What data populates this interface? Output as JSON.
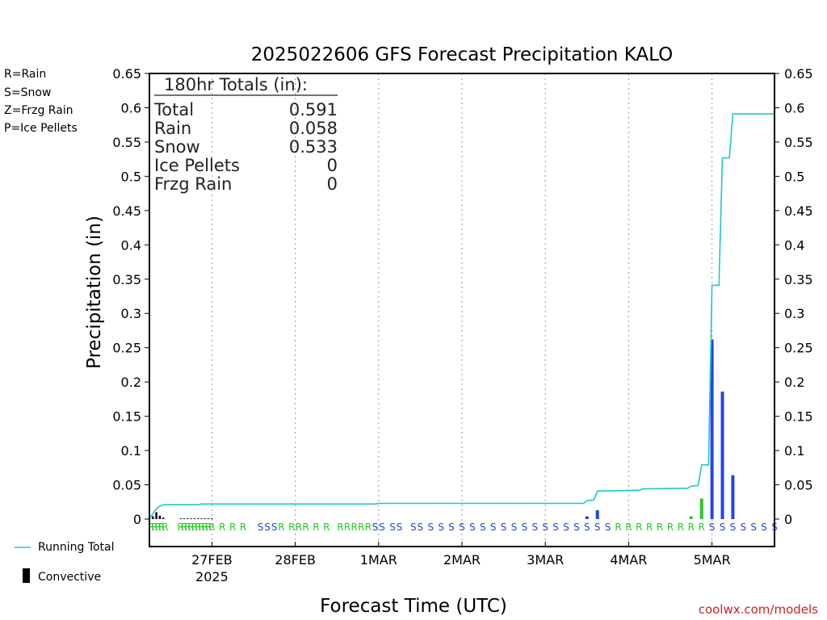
{
  "chart_data": {
    "type": "bar",
    "title": "2025022606 GFS Forecast Precipitation KALO",
    "xlabel": "Forecast Time (UTC)",
    "ylabel": "Precipitation (in)",
    "ylim": [
      0,
      0.65
    ],
    "xlim_hours": [
      0,
      180
    ],
    "y_ticks": [
      "0.65",
      "0.6",
      "0.55",
      "0.5",
      "0.45",
      "0.4",
      "0.35",
      "0.3",
      "0.25",
      "0.2",
      "0.15",
      "0.1",
      "0.05",
      "0"
    ],
    "x_tick_labels": [
      {
        "hour": 18,
        "label": "27FEB",
        "sublabel": "2025"
      },
      {
        "hour": 42,
        "label": "28FEB",
        "sublabel": ""
      },
      {
        "hour": 66,
        "label": "1MAR",
        "sublabel": ""
      },
      {
        "hour": 90,
        "label": "2MAR",
        "sublabel": ""
      },
      {
        "hour": 114,
        "label": "3MAR",
        "sublabel": ""
      },
      {
        "hour": 138,
        "label": "4MAR",
        "sublabel": ""
      },
      {
        "hour": 162,
        "label": "5MAR",
        "sublabel": ""
      }
    ],
    "grid": "vertical-dotted",
    "type_legend": [
      {
        "label": "R=Rain",
        "color": "#22cc22"
      },
      {
        "label": "S=Snow",
        "color": "#3355ee"
      },
      {
        "label": "Z=Frzg Rain",
        "color": "#ff8833"
      },
      {
        "label": "P=Ice Pellets",
        "color": "#ff2299"
      }
    ],
    "series_legend": {
      "running_total": "Running Total",
      "convective": "Convective"
    },
    "totals": {
      "header": "180hr Totals (in):",
      "rows": [
        {
          "label": "Total",
          "value": "0.591"
        },
        {
          "label": "Rain",
          "value": "0.058"
        },
        {
          "label": "Snow",
          "value": "0.533"
        },
        {
          "label": "Ice Pellets",
          "value": "0"
        },
        {
          "label": "Frzg Rain",
          "value": "0"
        }
      ]
    },
    "bars": [
      {
        "hour": 1,
        "value": 0.004,
        "kind": "convective"
      },
      {
        "hour": 2,
        "value": 0.01,
        "kind": "convective"
      },
      {
        "hour": 3,
        "value": 0.005,
        "kind": "convective"
      },
      {
        "hour": 4,
        "value": 0.002,
        "kind": "convective"
      },
      {
        "hour": 9,
        "value": 0.001,
        "kind": "convective"
      },
      {
        "hour": 10,
        "value": 0.001,
        "kind": "convective"
      },
      {
        "hour": 11,
        "value": 0.001,
        "kind": "convective"
      },
      {
        "hour": 12,
        "value": 0.001,
        "kind": "convective"
      },
      {
        "hour": 13,
        "value": 0.001,
        "kind": "convective"
      },
      {
        "hour": 14,
        "value": 0.001,
        "kind": "convective"
      },
      {
        "hour": 15,
        "value": 0.001,
        "kind": "convective"
      },
      {
        "hour": 16,
        "value": 0.001,
        "kind": "convective"
      },
      {
        "hour": 17,
        "value": 0.001,
        "kind": "convective"
      },
      {
        "hour": 18,
        "value": 0.001,
        "kind": "convective"
      },
      {
        "hour": 126,
        "value": 0.004,
        "kind": "snow"
      },
      {
        "hour": 129,
        "value": 0.013,
        "kind": "snow"
      },
      {
        "hour": 156,
        "value": 0.004,
        "kind": "rain"
      },
      {
        "hour": 159,
        "value": 0.03,
        "kind": "rain"
      },
      {
        "hour": 162,
        "value": 0.262,
        "kind": "snow"
      },
      {
        "hour": 165,
        "value": 0.186,
        "kind": "snow"
      },
      {
        "hour": 168,
        "value": 0.064,
        "kind": "snow"
      }
    ],
    "running_total": [
      {
        "hour": 0,
        "value": 0.0
      },
      {
        "hour": 1,
        "value": 0.008
      },
      {
        "hour": 2,
        "value": 0.015
      },
      {
        "hour": 3,
        "value": 0.019
      },
      {
        "hour": 4,
        "value": 0.021
      },
      {
        "hour": 14,
        "value": 0.021
      },
      {
        "hour": 15,
        "value": 0.022
      },
      {
        "hour": 65,
        "value": 0.022
      },
      {
        "hour": 66,
        "value": 0.023
      },
      {
        "hour": 125,
        "value": 0.023
      },
      {
        "hour": 126,
        "value": 0.027
      },
      {
        "hour": 128,
        "value": 0.028
      },
      {
        "hour": 129,
        "value": 0.041
      },
      {
        "hour": 141,
        "value": 0.042
      },
      {
        "hour": 142,
        "value": 0.044
      },
      {
        "hour": 155,
        "value": 0.045
      },
      {
        "hour": 156,
        "value": 0.048
      },
      {
        "hour": 158,
        "value": 0.049
      },
      {
        "hour": 159,
        "value": 0.079
      },
      {
        "hour": 161,
        "value": 0.079
      },
      {
        "hour": 162,
        "value": 0.341
      },
      {
        "hour": 164,
        "value": 0.341
      },
      {
        "hour": 165,
        "value": 0.527
      },
      {
        "hour": 167,
        "value": 0.527
      },
      {
        "hour": 168,
        "value": 0.591
      },
      {
        "hour": 180,
        "value": 0.591
      }
    ],
    "ptype_markers": [
      {
        "hour": 0.5,
        "type": "R"
      },
      {
        "hour": 1.5,
        "type": "R"
      },
      {
        "hour": 2.5,
        "type": "R"
      },
      {
        "hour": 3.5,
        "type": "R"
      },
      {
        "hour": 4.5,
        "type": "R"
      },
      {
        "hour": 9,
        "type": "R"
      },
      {
        "hour": 10,
        "type": "R"
      },
      {
        "hour": 11,
        "type": "R"
      },
      {
        "hour": 12,
        "type": "R"
      },
      {
        "hour": 13,
        "type": "R"
      },
      {
        "hour": 14,
        "type": "R"
      },
      {
        "hour": 15,
        "type": "R"
      },
      {
        "hour": 16,
        "type": "R"
      },
      {
        "hour": 17,
        "type": "R"
      },
      {
        "hour": 18,
        "type": "R"
      },
      {
        "hour": 21,
        "type": "R"
      },
      {
        "hour": 24,
        "type": "R"
      },
      {
        "hour": 27,
        "type": "R"
      },
      {
        "hour": 32,
        "type": "S"
      },
      {
        "hour": 34,
        "type": "S"
      },
      {
        "hour": 36,
        "type": "S"
      },
      {
        "hour": 38,
        "type": "R"
      },
      {
        "hour": 41,
        "type": "R"
      },
      {
        "hour": 43,
        "type": "R"
      },
      {
        "hour": 45,
        "type": "R"
      },
      {
        "hour": 48,
        "type": "R"
      },
      {
        "hour": 51,
        "type": "R"
      },
      {
        "hour": 55,
        "type": "R"
      },
      {
        "hour": 57,
        "type": "R"
      },
      {
        "hour": 59,
        "type": "R"
      },
      {
        "hour": 61,
        "type": "R"
      },
      {
        "hour": 63,
        "type": "R"
      },
      {
        "hour": 65,
        "type": "S"
      },
      {
        "hour": 67,
        "type": "S"
      },
      {
        "hour": 70,
        "type": "S"
      },
      {
        "hour": 72,
        "type": "S"
      },
      {
        "hour": 76,
        "type": "S"
      },
      {
        "hour": 78,
        "type": "S"
      },
      {
        "hour": 81,
        "type": "S"
      },
      {
        "hour": 84,
        "type": "S"
      },
      {
        "hour": 87,
        "type": "S"
      },
      {
        "hour": 90,
        "type": "S"
      },
      {
        "hour": 93,
        "type": "S"
      },
      {
        "hour": 96,
        "type": "S"
      },
      {
        "hour": 99,
        "type": "S"
      },
      {
        "hour": 102,
        "type": "S"
      },
      {
        "hour": 105,
        "type": "S"
      },
      {
        "hour": 108,
        "type": "S"
      },
      {
        "hour": 111,
        "type": "S"
      },
      {
        "hour": 114,
        "type": "S"
      },
      {
        "hour": 117,
        "type": "S"
      },
      {
        "hour": 120,
        "type": "S"
      },
      {
        "hour": 123,
        "type": "S"
      },
      {
        "hour": 126,
        "type": "S"
      },
      {
        "hour": 129,
        "type": "S"
      },
      {
        "hour": 132,
        "type": "S"
      },
      {
        "hour": 135,
        "type": "R"
      },
      {
        "hour": 138,
        "type": "R"
      },
      {
        "hour": 141,
        "type": "R"
      },
      {
        "hour": 144,
        "type": "R"
      },
      {
        "hour": 147,
        "type": "R"
      },
      {
        "hour": 150,
        "type": "R"
      },
      {
        "hour": 153,
        "type": "R"
      },
      {
        "hour": 156,
        "type": "R"
      },
      {
        "hour": 159,
        "type": "R"
      },
      {
        "hour": 162,
        "type": "S"
      },
      {
        "hour": 165,
        "type": "S"
      },
      {
        "hour": 168,
        "type": "S"
      },
      {
        "hour": 171,
        "type": "S"
      },
      {
        "hour": 174,
        "type": "S"
      },
      {
        "hour": 177,
        "type": "S"
      },
      {
        "hour": 180,
        "type": "S"
      }
    ],
    "colors": {
      "running_total": "#1ec8c8",
      "convective": "#000000",
      "rain": "#22cc22",
      "snow": "#2244ee",
      "grid": "#999999"
    }
  },
  "footer": {
    "credit": "coolwx.com/models"
  }
}
